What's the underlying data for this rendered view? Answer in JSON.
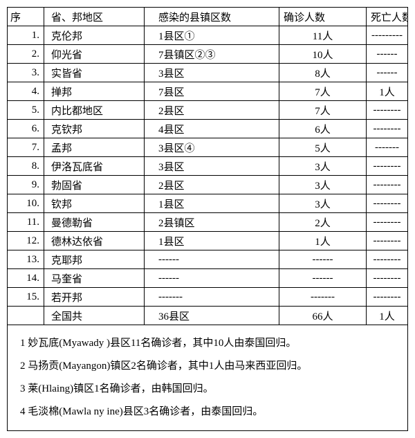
{
  "headers": {
    "seq": "序",
    "region": "省、邦地区",
    "districts": "感染的县镇区数",
    "confirmed": "确诊人数",
    "deaths": "死亡人数"
  },
  "rows": [
    {
      "seq": "1.",
      "region": "克伦邦",
      "districts": "1县区①",
      "confirmed": "11人",
      "deaths": "---------"
    },
    {
      "seq": "2.",
      "region": "仰光省",
      "districts": "7县镇区②③",
      "confirmed": "10人",
      "deaths": "------"
    },
    {
      "seq": "3.",
      "region": "实皆省",
      "districts": "3县区",
      "confirmed": "8人",
      "deaths": "------"
    },
    {
      "seq": "4.",
      "region": "掸邦",
      "districts": "7县区",
      "confirmed": "7人",
      "deaths": "1人"
    },
    {
      "seq": "5.",
      "region": "内比都地区",
      "districts": "2县区",
      "confirmed": "7人",
      "deaths": "--------"
    },
    {
      "seq": "6.",
      "region": "克钦邦",
      "districts": "4县区",
      "confirmed": "6人",
      "deaths": "--------"
    },
    {
      "seq": "7.",
      "region": "孟邦",
      "districts": "3县区④",
      "confirmed": "5人",
      "deaths": "-------"
    },
    {
      "seq": "8.",
      "region": "伊洛瓦底省",
      "districts": "3县区",
      "confirmed": "3人",
      "deaths": "--------"
    },
    {
      "seq": "9.",
      "region": "勃固省",
      "districts": "2县区",
      "confirmed": "3人",
      "deaths": "--------"
    },
    {
      "seq": "10.",
      "region": "钦邦",
      "districts": "1县区",
      "confirmed": "3人",
      "deaths": "--------"
    },
    {
      "seq": "11.",
      "region": "曼德勒省",
      "districts": "2县镇区",
      "confirmed": "2人",
      "deaths": "--------"
    },
    {
      "seq": "12.",
      "region": "德林达依省",
      "districts": "1县区",
      "confirmed": "1人",
      "deaths": "--------"
    },
    {
      "seq": "13.",
      "region": "克耶邦",
      "districts": "------",
      "confirmed": "------",
      "deaths": "--------"
    },
    {
      "seq": "14.",
      "region": "马奎省",
      "districts": "------",
      "confirmed": "------",
      "deaths": "--------"
    },
    {
      "seq": "15.",
      "region": "若开邦",
      "districts": "-------",
      "confirmed": "-------",
      "deaths": "--------"
    }
  ],
  "total": {
    "seq": "",
    "region": "全国共",
    "districts": "36县区",
    "confirmed": "66人",
    "deaths": "1人"
  },
  "notes": [
    "1 妙瓦底(Myawady )县区11名确诊者，其中10人由泰国回归。",
    "2 马扬贡(Mayangon)镇区2名确诊者，其中1人由马来西亚回归。",
    "3 莱(Hlaing)镇区1名确诊者，由韩国回归。",
    "4 毛淡棉(Mawla ny ine)县区3名确诊者，由泰国回归。"
  ]
}
